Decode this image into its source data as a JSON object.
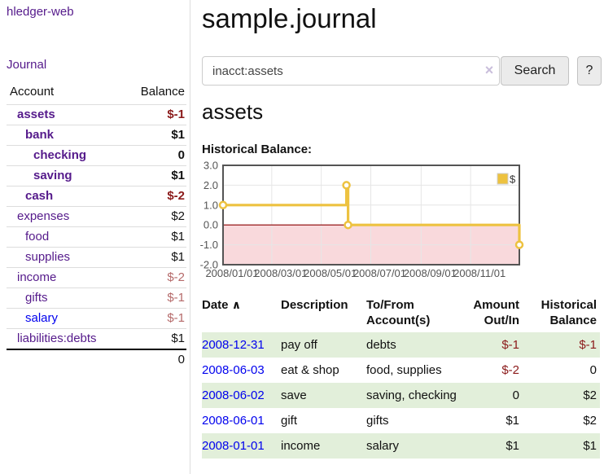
{
  "app": {
    "brand": "hledger-web"
  },
  "nav": {
    "journal": "Journal"
  },
  "sidebar": {
    "columns": {
      "account": "Account",
      "balance": "Balance"
    },
    "accounts": [
      {
        "name": "assets",
        "indent": 1,
        "bold": true,
        "link_color": "purple",
        "balance": "$-1",
        "balance_color": "dark-red"
      },
      {
        "name": "bank",
        "indent": 2,
        "bold": true,
        "link_color": "purple",
        "balance": "$1",
        "balance_color": "black"
      },
      {
        "name": "checking",
        "indent": 3,
        "bold": true,
        "link_color": "purple",
        "balance": "0",
        "balance_color": "black"
      },
      {
        "name": "saving",
        "indent": 3,
        "bold": true,
        "link_color": "purple",
        "balance": "$1",
        "balance_color": "black"
      },
      {
        "name": "cash",
        "indent": 2,
        "bold": true,
        "link_color": "purple",
        "balance": "$-2",
        "balance_color": "dark-red"
      },
      {
        "name": "expenses",
        "indent": 1,
        "bold": false,
        "link_color": "purple",
        "balance": "$2",
        "balance_color": "black"
      },
      {
        "name": "food",
        "indent": 2,
        "bold": false,
        "link_color": "purple",
        "balance": "$1",
        "balance_color": "black"
      },
      {
        "name": "supplies",
        "indent": 2,
        "bold": false,
        "link_color": "purple",
        "balance": "$1",
        "balance_color": "black"
      },
      {
        "name": "income",
        "indent": 1,
        "bold": false,
        "link_color": "purple",
        "balance": "$-2",
        "balance_color": "soft-red"
      },
      {
        "name": "gifts",
        "indent": 2,
        "bold": false,
        "link_color": "purple",
        "balance": "$-1",
        "balance_color": "soft-red"
      },
      {
        "name": "salary",
        "indent": 2,
        "bold": false,
        "link_color": "blue",
        "balance": "$-1",
        "balance_color": "soft-red"
      },
      {
        "name": "liabilities:debts",
        "indent": 1,
        "bold": false,
        "link_color": "purple",
        "balance": "$1",
        "balance_color": "black"
      }
    ],
    "total": "0"
  },
  "main": {
    "title": "sample.journal",
    "account_title": "assets",
    "chart_heading": "Historical Balance:"
  },
  "search": {
    "value": "inacct:assets",
    "clear_icon": "×",
    "submit_label": "Search",
    "help_label": "?"
  },
  "chart_data": {
    "type": "line",
    "step": true,
    "title": "Historical Balance:",
    "series": [
      {
        "name": "$",
        "color": "#edc240",
        "points": [
          {
            "date": "2008-01-01",
            "value": 1
          },
          {
            "date": "2008-06-01",
            "value": 2
          },
          {
            "date": "2008-06-03",
            "value": 0
          },
          {
            "date": "2008-12-31",
            "value": -1
          }
        ]
      }
    ],
    "xlim": [
      "2008-01-01",
      "2008-12-31"
    ],
    "ylim": [
      -2,
      3
    ],
    "x_ticks": [
      "2008/01/01",
      "2008/03/01",
      "2008/05/01",
      "2008/07/01",
      "2008/09/01",
      "2008/11/01"
    ],
    "y_ticks": [
      "3.0",
      "2.0",
      "1.0",
      "0.0",
      "-1.0",
      "-2.0"
    ],
    "grid": true,
    "legend_position": "top-right",
    "colors": {
      "negative_fill": "#f9d9dc",
      "zero_line": "#8b0000",
      "border": "#545454",
      "grid": "#e6e6e6",
      "tick_text": "#545454"
    }
  },
  "register": {
    "sort_icon": "∧",
    "columns": [
      {
        "label": "Date",
        "align": "left",
        "sorted": "asc"
      },
      {
        "label": "Description",
        "align": "left"
      },
      {
        "label": "To/From Account(s)",
        "align": "left"
      },
      {
        "label": "Amount Out/In",
        "align": "right"
      },
      {
        "label": "Historical Balance",
        "align": "right"
      }
    ],
    "rows": [
      {
        "date": "2008-12-31",
        "description": "pay off",
        "accounts": "debts",
        "amount": "$-1",
        "amount_neg": true,
        "balance": "$-1",
        "balance_neg": true,
        "shaded": true
      },
      {
        "date": "2008-06-03",
        "description": "eat & shop",
        "accounts": "food, supplies",
        "amount": "$-2",
        "amount_neg": true,
        "balance": "0",
        "balance_neg": false,
        "shaded": false
      },
      {
        "date": "2008-06-02",
        "description": "save",
        "accounts": "saving, checking",
        "amount": "0",
        "amount_neg": false,
        "balance": "$2",
        "balance_neg": false,
        "shaded": true
      },
      {
        "date": "2008-06-01",
        "description": "gift",
        "accounts": "gifts",
        "amount": "$1",
        "amount_neg": false,
        "balance": "$2",
        "balance_neg": false,
        "shaded": false
      },
      {
        "date": "2008-01-01",
        "description": "income",
        "accounts": "salary",
        "amount": "$1",
        "amount_neg": false,
        "balance": "$1",
        "balance_neg": false,
        "shaded": true
      }
    ]
  }
}
